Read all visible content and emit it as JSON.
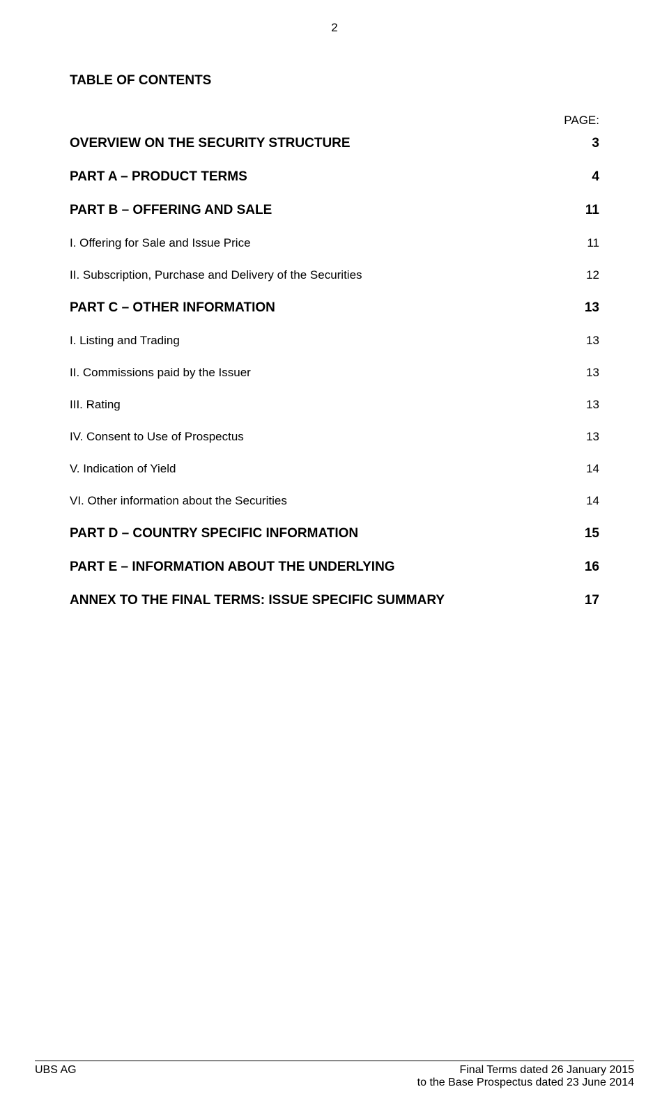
{
  "page_number_top": "2",
  "toc_title": "TABLE OF CONTENTS",
  "page_label": "PAGE:",
  "entries": [
    {
      "label": "OVERVIEW ON THE SECURITY STRUCTURE",
      "page": "3",
      "bold": true
    },
    {
      "label": "PART A – PRODUCT TERMS",
      "page": "4",
      "bold": true
    },
    {
      "label": "PART B – OFFERING AND SALE",
      "page": "11",
      "bold": true
    },
    {
      "label": "I. Offering for Sale and Issue Price",
      "page": "11",
      "bold": false
    },
    {
      "label": "II. Subscription, Purchase and Delivery of the Securities",
      "page": "12",
      "bold": false
    },
    {
      "label": "PART C – OTHER INFORMATION",
      "page": "13",
      "bold": true
    },
    {
      "label": "I. Listing and Trading",
      "page": "13",
      "bold": false
    },
    {
      "label": "II. Commissions paid by the Issuer",
      "page": "13",
      "bold": false
    },
    {
      "label": "III. Rating",
      "page": "13",
      "bold": false
    },
    {
      "label": "IV. Consent to Use of Prospectus",
      "page": "13",
      "bold": false
    },
    {
      "label": "V. Indication of Yield",
      "page": "14",
      "bold": false
    },
    {
      "label": "VI. Other information about the Securities",
      "page": "14",
      "bold": false
    },
    {
      "label": "PART D – COUNTRY SPECIFIC INFORMATION",
      "page": "15",
      "bold": true
    },
    {
      "label": "PART E – INFORMATION ABOUT THE UNDERLYING",
      "page": "16",
      "bold": true
    },
    {
      "label": "ANNEX TO THE FINAL TERMS: ISSUE SPECIFIC SUMMARY",
      "page": "17",
      "bold": true
    }
  ],
  "footer": {
    "left": "UBS AG",
    "right_line1": "Final Terms dated 26 January 2015",
    "right_line2": "to the Base Prospectus dated 23 June 2014"
  }
}
